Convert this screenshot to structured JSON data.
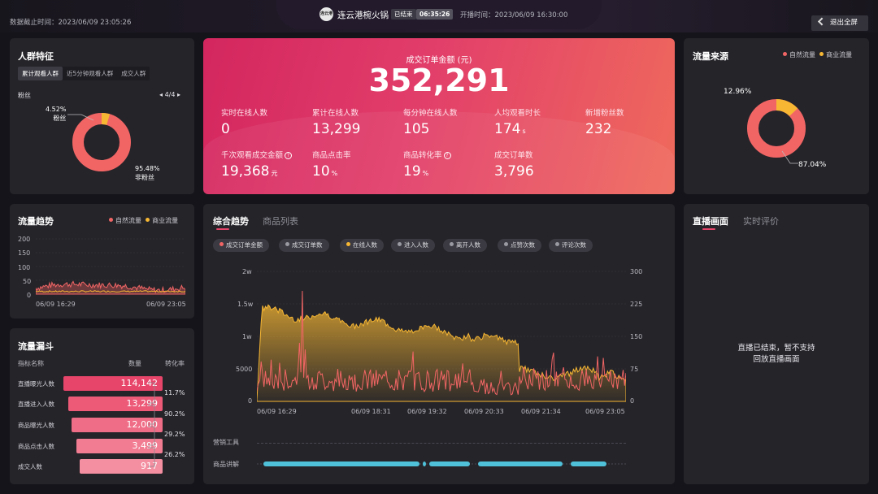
{
  "header": {
    "cutoff_time": "数据截止时间：2023/06/09 23:05:26",
    "logo_text": "连云港",
    "store_name": "连云港椀火锅",
    "status_badge": "已结束",
    "duration": "06:35:26",
    "start_time": "开播时间：2023/06/09 16:30:00",
    "exit_label": "退出全屏"
  },
  "crowd": {
    "title": "人群特征",
    "tabs": [
      "累计观看人群",
      "近5分钟观看人群",
      "成交人群"
    ],
    "subtitle": "粉丝",
    "pager": "4/4",
    "fan_pct": "4.52%",
    "fan_label": "粉丝",
    "nonfan_pct": "95.48%",
    "nonfan_label": "非粉丝",
    "fan_share": 4.52,
    "color_fan": "#f7b733",
    "color_nonfan": "#f26565"
  },
  "hero": {
    "label": "成交订单金额 (元)",
    "value": "352,291",
    "kpis": [
      {
        "label": "实时在线人数",
        "value": "0",
        "unit": ""
      },
      {
        "label": "累计在线人数",
        "value": "13,299",
        "unit": ""
      },
      {
        "label": "每分钟在线人数",
        "value": "105",
        "unit": ""
      },
      {
        "label": "人均观看时长",
        "value": "174",
        "unit": "s"
      },
      {
        "label": "新增粉丝数",
        "value": "232",
        "unit": ""
      },
      {
        "label": "千次观看成交金额",
        "value": "19,368",
        "unit": "元"
      },
      {
        "label": "商品点击率",
        "value": "10",
        "unit": "%"
      },
      {
        "label": "商品转化率",
        "value": "19",
        "unit": "%"
      },
      {
        "label": "成交订单数",
        "value": "3,796",
        "unit": ""
      }
    ]
  },
  "traffic_source": {
    "title": "流量来源",
    "legend": [
      "自然流量",
      "商业流量"
    ],
    "commercial_pct": "12.96%",
    "natural_pct": "87.04%",
    "commercial_share": 12.96,
    "color_natural": "#f26565",
    "color_commercial": "#f7b733"
  },
  "trend": {
    "title": "流量趋势",
    "legend": [
      "自然流量",
      "商业流量"
    ],
    "y_ticks": [
      "200",
      "150",
      "100",
      "50",
      "0"
    ],
    "x_ticks": [
      "06/09 16:29",
      "06/09 23:05"
    ]
  },
  "funnel": {
    "title": "流量漏斗",
    "col_name": "指标名称",
    "col_count": "数量",
    "col_rate": "转化率",
    "rows": [
      {
        "name": "直播曝光人数",
        "value": "114,142"
      },
      {
        "name": "直播进入人数",
        "value": "13,299"
      },
      {
        "name": "商品曝光人数",
        "value": "12,000"
      },
      {
        "name": "商品点击人数",
        "value": "3,499"
      },
      {
        "name": "成交人数",
        "value": "917"
      }
    ],
    "rates": [
      "11.7%",
      "90.2%",
      "29.2%",
      "26.2%"
    ]
  },
  "combo": {
    "tab_active": "综合趋势",
    "tab_other": "商品列表",
    "chips": [
      {
        "label": "成交订单金额",
        "color": "#f26565"
      },
      {
        "label": "成交订单数",
        "color": "#9a9aa2"
      },
      {
        "label": "在线人数",
        "color": "#f7b733"
      },
      {
        "label": "进入人数",
        "color": "#9a9aa2"
      },
      {
        "label": "离开人数",
        "color": "#9a9aa2"
      },
      {
        "label": "点赞次数",
        "color": "#9a9aa2"
      },
      {
        "label": "评论次数",
        "color": "#9a9aa2"
      }
    ],
    "y_left_ticks": [
      "2w",
      "1.5w",
      "1w",
      "5000",
      "0"
    ],
    "y_right_ticks": [
      "300",
      "225",
      "150",
      "75",
      "0"
    ],
    "x_ticks": [
      "06/09 16:29",
      "06/09 18:31",
      "06/09 19:32",
      "06/09 20:33",
      "06/09 21:34",
      "06/09 23:05"
    ],
    "marketing_label": "营销工具",
    "explain_label": "商品讲解"
  },
  "live": {
    "tab_active": "直播画面",
    "tab_other": "实时评价",
    "msg1": "直播已结束，暂不支持",
    "msg2": "回放直播画面"
  }
}
